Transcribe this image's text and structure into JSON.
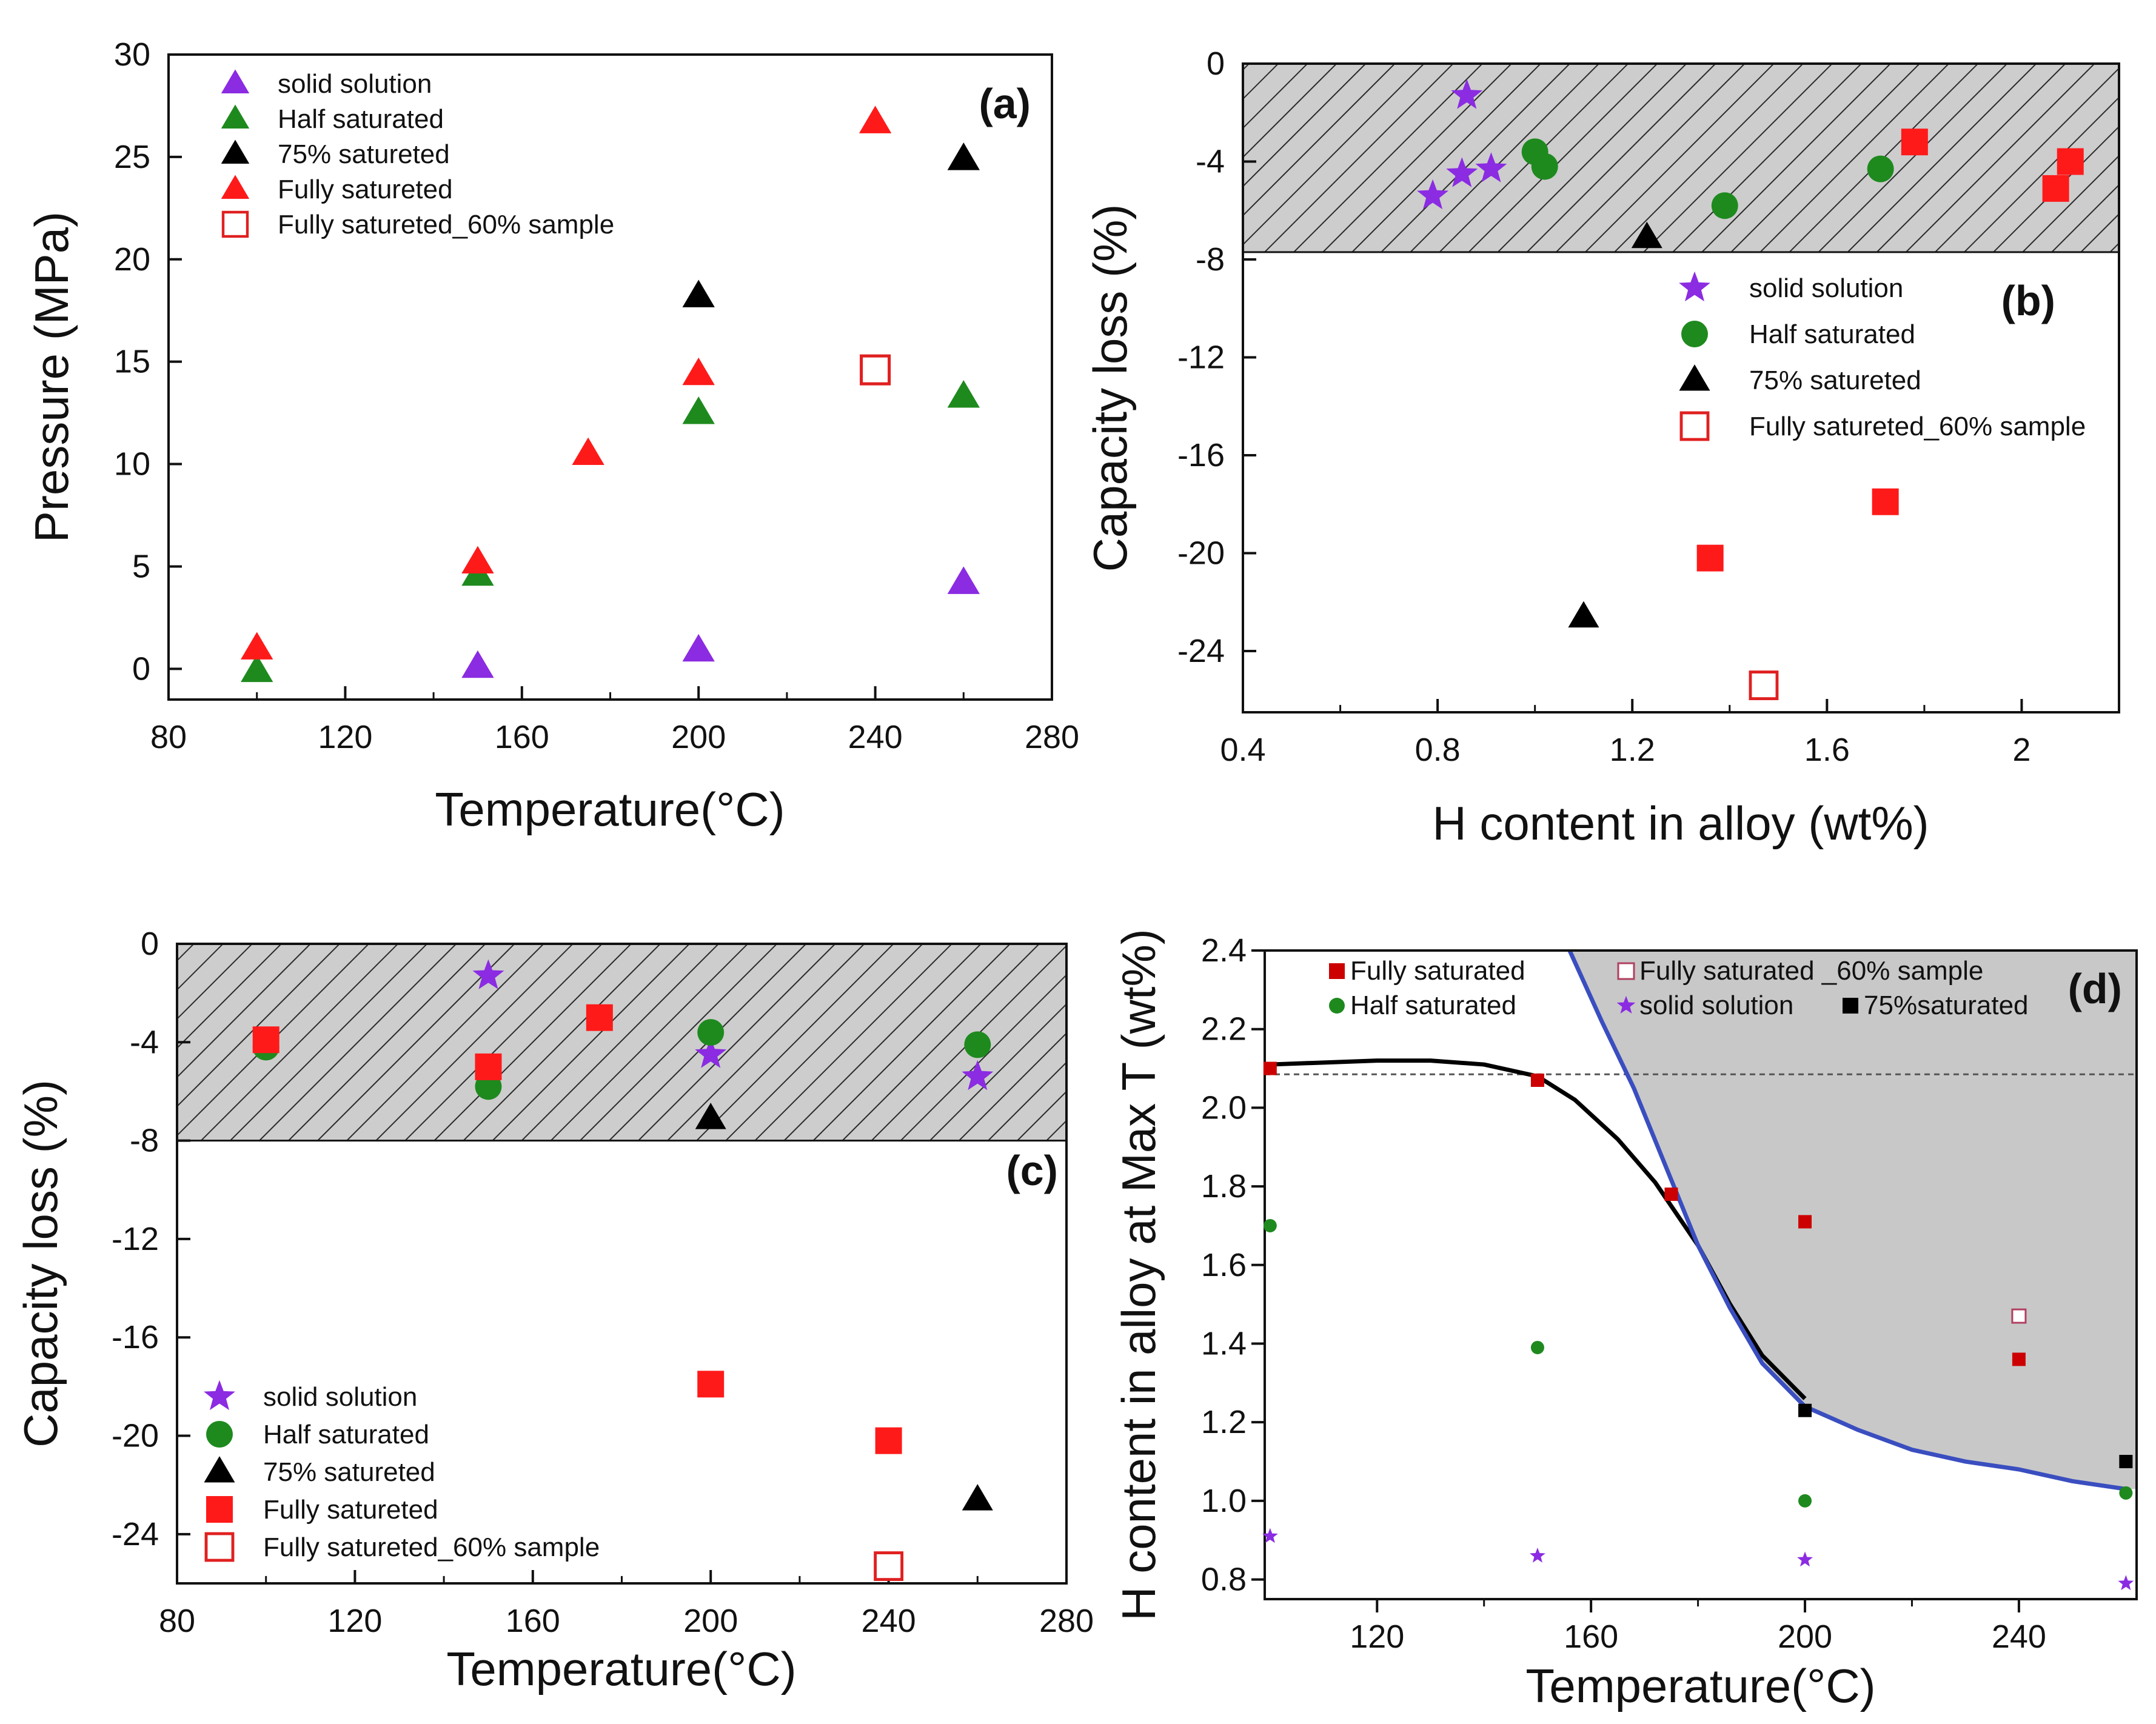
{
  "chart_data": [
    {
      "id": "a",
      "type": "scatter",
      "panel_label": "(a)",
      "xlabel": "Temperature(°C)",
      "ylabel": "Pressure (MPa)",
      "xlim": [
        80,
        280
      ],
      "ylim": [
        -1.5,
        30
      ],
      "xticks": [
        80,
        120,
        160,
        200,
        240,
        280
      ],
      "yticks": [
        0,
        5,
        10,
        15,
        20,
        25,
        30
      ],
      "legend_position": "top-left",
      "legend_order": [
        0,
        1,
        2,
        3,
        4
      ],
      "series": [
        {
          "name": "solid solution",
          "marker": "triangle",
          "color": "#8B2BE2",
          "filled": true,
          "points": [
            [
              150,
              0.1
            ],
            [
              200,
              0.9
            ],
            [
              260,
              4.2
            ]
          ]
        },
        {
          "name": "Half saturated",
          "marker": "triangle",
          "color": "#1E8A1E",
          "filled": true,
          "points": [
            [
              100,
              -0.1
            ],
            [
              150,
              4.6
            ],
            [
              200,
              12.5
            ],
            [
              260,
              13.3
            ]
          ]
        },
        {
          "name": "75% satureted",
          "marker": "triangle",
          "color": "#000000",
          "filled": true,
          "points": [
            [
              200,
              18.2
            ],
            [
              260,
              24.9
            ]
          ]
        },
        {
          "name": "Fully satureted",
          "marker": "triangle",
          "color": "#FF1A1A",
          "filled": true,
          "points": [
            [
              100,
              1.0
            ],
            [
              150,
              5.2
            ],
            [
              175,
              10.5
            ],
            [
              200,
              14.4
            ],
            [
              240,
              26.7
            ]
          ]
        },
        {
          "name": "Fully satureted_60% sample",
          "marker": "square",
          "color": "#E02020",
          "filled": false,
          "points": [
            [
              240,
              14.6
            ]
          ]
        }
      ]
    },
    {
      "id": "b",
      "type": "scatter",
      "panel_label": "(b)",
      "xlabel": "H content in alloy (wt%)",
      "ylabel": "Capacity loss (%)",
      "xlim": [
        0.4,
        2.2
      ],
      "ylim": [
        -26.5,
        0
      ],
      "xticks": [
        0.4,
        0.8,
        1.2,
        1.6,
        2.0
      ],
      "yticks": [
        0,
        -4,
        -8,
        -12,
        -16,
        -20,
        -24
      ],
      "shaded_region_y": [
        -7.7,
        0
      ],
      "legend_position": "right",
      "legend_order": [
        0,
        1,
        2,
        4
      ],
      "series": [
        {
          "name": "solid solution",
          "marker": "star",
          "color": "#8B2BE2",
          "filled": true,
          "points": [
            [
              0.86,
              -1.3
            ],
            [
              0.79,
              -5.4
            ],
            [
              0.85,
              -4.5
            ],
            [
              0.91,
              -4.3
            ]
          ]
        },
        {
          "name": "Half saturated",
          "marker": "circle",
          "color": "#1E8A1E",
          "filled": true,
          "points": [
            [
              1.0,
              -3.6
            ],
            [
              1.02,
              -4.2
            ],
            [
              1.39,
              -5.8
            ],
            [
              1.71,
              -4.3
            ]
          ]
        },
        {
          "name": "75% satureted",
          "marker": "triangle",
          "color": "#000000",
          "filled": true,
          "points": [
            [
              1.23,
              -7.1
            ],
            [
              1.1,
              -22.6
            ]
          ]
        },
        {
          "name": "Fully satureted",
          "marker": "square",
          "color": "#FF1A1A",
          "filled": true,
          "points": [
            [
              1.78,
              -3.2
            ],
            [
              2.07,
              -5.1
            ],
            [
              2.1,
              -4.0
            ],
            [
              1.72,
              -17.9
            ],
            [
              1.36,
              -20.2
            ]
          ]
        },
        {
          "name": "Fully satureted_60% sample",
          "marker": "square",
          "color": "#E02020",
          "filled": false,
          "points": [
            [
              1.47,
              -25.4
            ]
          ]
        }
      ]
    },
    {
      "id": "c",
      "type": "scatter",
      "panel_label": "(c)",
      "xlabel": "Temperature(°C)",
      "ylabel": "Capacity loss (%)",
      "xlim": [
        80,
        280
      ],
      "ylim": [
        -26,
        0
      ],
      "xticks": [
        80,
        120,
        160,
        200,
        240,
        280
      ],
      "yticks": [
        0,
        -4,
        -8,
        -12,
        -16,
        -20,
        -24
      ],
      "shaded_region_y": [
        -8,
        0
      ],
      "legend_position": "bottom-left",
      "legend_order": [
        0,
        1,
        2,
        3,
        4
      ],
      "series": [
        {
          "name": "solid solution",
          "marker": "star",
          "color": "#8B2BE2",
          "filled": true,
          "points": [
            [
              150,
              -1.3
            ],
            [
              200,
              -4.5
            ],
            [
              260,
              -5.4
            ]
          ]
        },
        {
          "name": "Half saturated",
          "marker": "circle",
          "color": "#1E8A1E",
          "filled": true,
          "points": [
            [
              100,
              -4.2
            ],
            [
              150,
              -5.8
            ],
            [
              200,
              -3.6
            ],
            [
              260,
              -4.1
            ]
          ]
        },
        {
          "name": "75% satureted",
          "marker": "triangle",
          "color": "#000000",
          "filled": true,
          "points": [
            [
              200,
              -7.1
            ],
            [
              260,
              -22.6
            ]
          ]
        },
        {
          "name": "Fully satureted",
          "marker": "square",
          "color": "#FF1A1A",
          "filled": true,
          "points": [
            [
              100,
              -3.9
            ],
            [
              150,
              -5.0
            ],
            [
              175,
              -3.0
            ],
            [
              200,
              -17.9
            ],
            [
              240,
              -20.2
            ]
          ]
        },
        {
          "name": "Fully satureted_60% sample",
          "marker": "square",
          "color": "#E02020",
          "filled": false,
          "points": [
            [
              240,
              -25.3
            ]
          ]
        }
      ]
    },
    {
      "id": "d",
      "type": "scatter",
      "panel_label": "(d)",
      "xlabel": "Temperature(°C)",
      "ylabel": "H content in alloy  at Max T (wt%)",
      "xlim": [
        99,
        262
      ],
      "ylim": [
        0.75,
        2.4
      ],
      "xticks": [
        120,
        160,
        200,
        240
      ],
      "yticks": [
        0.8,
        1.0,
        1.2,
        1.4,
        1.6,
        1.8,
        2.0,
        2.2,
        2.4
      ],
      "dashed_reference_y": 2.085,
      "legend_position": "top",
      "legend_order": [
        0,
        1,
        2,
        3,
        4
      ],
      "series": [
        {
          "name": "Fully saturated",
          "marker": "square",
          "color": "#CC0000",
          "filled": true,
          "points": [
            [
              100,
              2.1
            ],
            [
              150,
              2.07
            ],
            [
              175,
              1.78
            ],
            [
              200,
              1.71
            ],
            [
              240,
              1.36
            ]
          ]
        },
        {
          "name": "Half saturated",
          "marker": "circle",
          "color": "#1E8A1E",
          "filled": true,
          "points": [
            [
              100,
              1.7
            ],
            [
              150,
              1.39
            ],
            [
              200,
              1.0
            ],
            [
              260,
              1.02
            ]
          ]
        },
        {
          "name": "Fully saturated _60% sample",
          "marker": "square",
          "color": "#B04060",
          "filled": false,
          "points": [
            [
              240,
              1.47
            ]
          ]
        },
        {
          "name": "solid solution",
          "marker": "star",
          "color": "#8B2BE2",
          "filled": true,
          "points": [
            [
              100,
              0.91
            ],
            [
              150,
              0.86
            ],
            [
              200,
              0.85
            ],
            [
              260,
              0.79
            ]
          ]
        },
        {
          "name": "75%saturated",
          "marker": "square",
          "color": "#000000",
          "filled": true,
          "points": [
            [
              200,
              1.23
            ],
            [
              260,
              1.1
            ]
          ]
        }
      ],
      "fit_curve": {
        "color": "#000000",
        "points": [
          [
            100,
            2.11
          ],
          [
            110,
            2.115
          ],
          [
            120,
            2.12
          ],
          [
            130,
            2.12
          ],
          [
            140,
            2.11
          ],
          [
            150,
            2.08
          ],
          [
            157,
            2.02
          ],
          [
            165,
            1.92
          ],
          [
            172,
            1.81
          ],
          [
            180,
            1.65
          ],
          [
            186,
            1.5
          ],
          [
            192,
            1.37
          ],
          [
            200,
            1.26
          ]
        ]
      },
      "boundary_curve": {
        "color": "#3A4EC0",
        "points": [
          [
            156,
            2.4
          ],
          [
            162,
            2.22
          ],
          [
            168,
            2.05
          ],
          [
            174,
            1.85
          ],
          [
            180,
            1.65
          ],
          [
            186,
            1.49
          ],
          [
            192,
            1.35
          ],
          [
            200,
            1.24
          ],
          [
            210,
            1.18
          ],
          [
            220,
            1.13
          ],
          [
            230,
            1.1
          ],
          [
            240,
            1.08
          ],
          [
            250,
            1.05
          ],
          [
            260,
            1.03
          ]
        ]
      }
    }
  ]
}
